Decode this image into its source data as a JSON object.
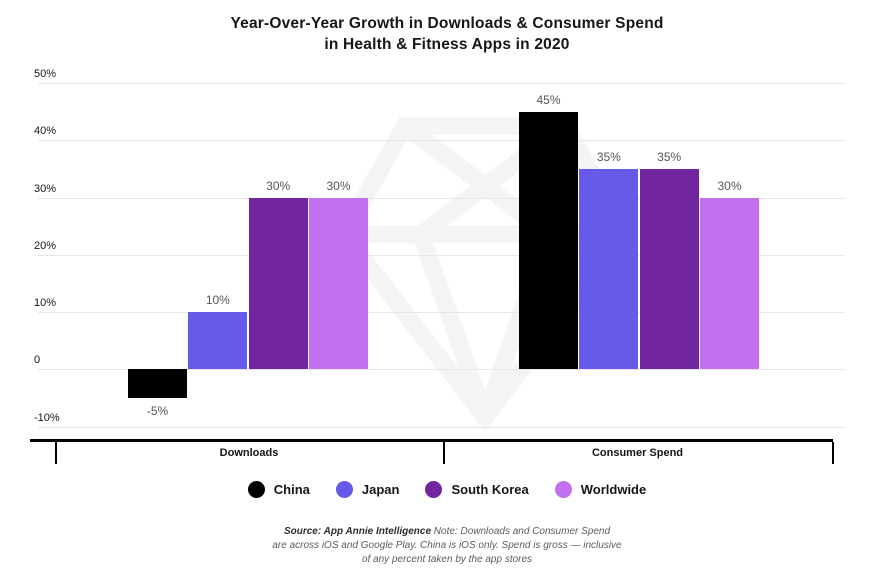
{
  "title": {
    "line1": "Year-Over-Year Growth in Downloads & Consumer Spend",
    "line2": "in Health & Fitness Apps in 2020"
  },
  "chart_data": {
    "type": "bar",
    "title": "Year-Over-Year Growth in Downloads & Consumer Spend in Health & Fitness Apps in 2020",
    "categories": [
      "Downloads",
      "Consumer Spend"
    ],
    "series": [
      {
        "name": "China",
        "color": "#000000",
        "values": [
          -5,
          45
        ]
      },
      {
        "name": "Japan",
        "color": "#685AE8",
        "values": [
          10,
          35
        ]
      },
      {
        "name": "South Korea",
        "color": "#7126A0",
        "values": [
          30,
          35
        ]
      },
      {
        "name": "Worldwide",
        "color": "#C26FF0",
        "values": [
          30,
          30
        ]
      }
    ],
    "ylim": [
      -10,
      50
    ],
    "yticks": [
      {
        "value": 50,
        "label": "50%"
      },
      {
        "value": 40,
        "label": "40%"
      },
      {
        "value": 30,
        "label": "30%"
      },
      {
        "value": 20,
        "label": "20%"
      },
      {
        "value": 10,
        "label": "10%"
      },
      {
        "value": 0,
        "label": "0"
      },
      {
        "value": -10,
        "label": "-10%"
      }
    ],
    "grid": true,
    "legend_position": "bottom",
    "value_label_format": "percent",
    "watermark": "app-annie-gem"
  },
  "footer": {
    "source_label": "Source: App Annie Intelligence",
    "note_line1": " Note: Downloads and Consumer Spend",
    "note_line2": "are across iOS and Google Play. China is iOS only. Spend is gross — inclusive",
    "note_line3": "of any percent taken by the app stores"
  }
}
